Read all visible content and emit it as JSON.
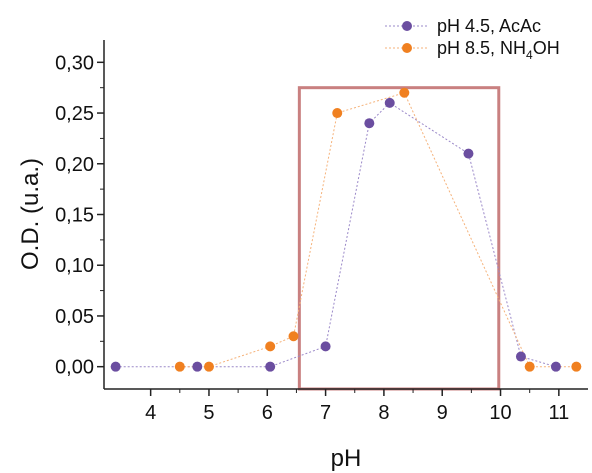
{
  "chart_data": {
    "type": "line",
    "xlabel": "pH",
    "ylabel": "O.D. (u.a.)",
    "xlim": [
      3.2,
      11.5
    ],
    "ylim": [
      -0.022,
      0.322
    ],
    "x_ticks": [
      "4",
      "5",
      "6",
      "7",
      "8",
      "9",
      "10",
      "11"
    ],
    "y_ticks": [
      "0,00",
      "0,05",
      "0,10",
      "0,15",
      "0,20",
      "0,25",
      "0,30"
    ],
    "legend_position": "top-right",
    "series": [
      {
        "name": "pH 4.5, AcAc",
        "color": "#6b4ea0",
        "line_color": "#9a88c8",
        "points": [
          {
            "x": 3.4,
            "y": 0.0
          },
          {
            "x": 4.8,
            "y": 0.0
          },
          {
            "x": 6.05,
            "y": 0.0
          },
          {
            "x": 7.0,
            "y": 0.02
          },
          {
            "x": 7.75,
            "y": 0.24
          },
          {
            "x": 8.1,
            "y": 0.26
          },
          {
            "x": 9.45,
            "y": 0.21
          },
          {
            "x": 10.35,
            "y": 0.01
          },
          {
            "x": 10.95,
            "y": 0.0
          }
        ]
      },
      {
        "name_parts": [
          "pH 8.5, NH",
          "4",
          "OH"
        ],
        "color": "#f08020",
        "line_color": "#f5b27a",
        "points": [
          {
            "x": 4.5,
            "y": 0.0
          },
          {
            "x": 5.0,
            "y": 0.0
          },
          {
            "x": 6.05,
            "y": 0.02
          },
          {
            "x": 6.45,
            "y": 0.03
          },
          {
            "x": 7.2,
            "y": 0.25
          },
          {
            "x": 8.35,
            "y": 0.27
          },
          {
            "x": 10.5,
            "y": 0.0
          },
          {
            "x": 11.3,
            "y": 0.0
          }
        ]
      }
    ],
    "highlight_region": {
      "x_range": [
        6.55,
        9.97
      ],
      "y_range": [
        -0.022,
        0.275
      ],
      "color": "#c98080"
    }
  }
}
